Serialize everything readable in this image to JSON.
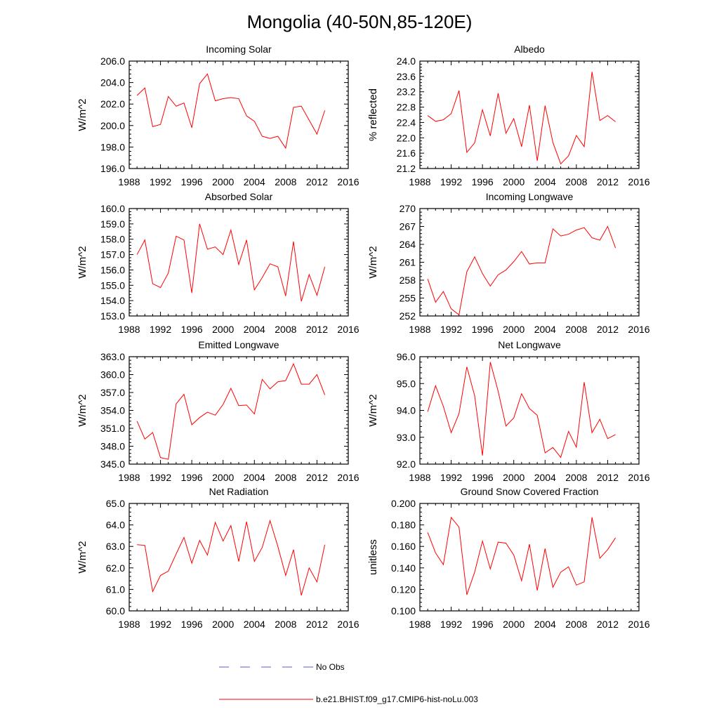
{
  "figure": {
    "title": "Mongolia (40-50N,85-120E)"
  },
  "legend": [
    {
      "label": "No Obs",
      "color": "#5b5bd6",
      "dash": true
    },
    {
      "label": "b.e21.BHIST.f09_g17.CMIP6-hist-noLu.003",
      "color": "#ff0000",
      "dash": false
    }
  ],
  "chart_data": [
    {
      "type": "line",
      "title": "Incoming Solar",
      "ylabel": "W/m^2",
      "xlim": [
        1988,
        2016
      ],
      "xticks": [
        1988,
        1992,
        1996,
        2000,
        2004,
        2008,
        2012,
        2016
      ],
      "ylim": [
        196.0,
        206.0
      ],
      "yticks": [
        "196.0",
        "198.0",
        "200.0",
        "202.0",
        "204.0",
        "206.0"
      ],
      "x": [
        1989,
        1990,
        1991,
        1992,
        1993,
        1994,
        1995,
        1996,
        1997,
        1998,
        1999,
        2000,
        2001,
        2002,
        2003,
        2004,
        2005,
        2006,
        2007,
        2008,
        2009,
        2010,
        2011,
        2012,
        2013
      ],
      "series": [
        {
          "name": "b.e21.BHIST.f09_g17.CMIP6-hist-noLu.003",
          "color": "#ff0000",
          "values": [
            202.8,
            203.5,
            199.9,
            200.1,
            202.7,
            201.8,
            202.1,
            199.8,
            203.9,
            204.8,
            202.3,
            202.5,
            202.6,
            202.5,
            200.9,
            200.4,
            199.0,
            198.8,
            199.0,
            197.9,
            201.7,
            201.8,
            200.5,
            199.2,
            201.4
          ]
        }
      ]
    },
    {
      "type": "line",
      "title": "Albedo",
      "ylabel": "% reflected",
      "xlim": [
        1988,
        2016
      ],
      "xticks": [
        1988,
        1992,
        1996,
        2000,
        2004,
        2008,
        2012,
        2016
      ],
      "ylim": [
        21.2,
        24.0
      ],
      "yticks": [
        "21.2",
        "21.6",
        "22.0",
        "22.4",
        "22.8",
        "23.2",
        "23.6",
        "24.0"
      ],
      "x": [
        1989,
        1990,
        1991,
        1992,
        1993,
        1994,
        1995,
        1996,
        1997,
        1998,
        1999,
        2000,
        2001,
        2002,
        2003,
        2004,
        2005,
        2006,
        2007,
        2008,
        2009,
        2010,
        2011,
        2012,
        2013
      ],
      "series": [
        {
          "name": "b.e21.BHIST.f09_g17.CMIP6-hist-noLu.003",
          "color": "#ff0000",
          "values": [
            22.58,
            22.43,
            22.47,
            22.63,
            23.23,
            21.62,
            21.87,
            22.73,
            22.05,
            23.16,
            22.12,
            22.5,
            21.77,
            22.85,
            21.4,
            22.84,
            21.88,
            21.32,
            21.53,
            22.06,
            21.77,
            23.72,
            22.45,
            22.58,
            22.42
          ]
        }
      ]
    },
    {
      "type": "line",
      "title": "Absorbed Solar",
      "ylabel": "W/m^2",
      "xlim": [
        1988,
        2016
      ],
      "xticks": [
        1988,
        1992,
        1996,
        2000,
        2004,
        2008,
        2012,
        2016
      ],
      "ylim": [
        153.0,
        160.0
      ],
      "yticks": [
        "153.0",
        "154.0",
        "155.0",
        "156.0",
        "157.0",
        "158.0",
        "159.0",
        "160.0"
      ],
      "x": [
        1989,
        1990,
        1991,
        1992,
        1993,
        1994,
        1995,
        1996,
        1997,
        1998,
        1999,
        2000,
        2001,
        2002,
        2003,
        2004,
        2005,
        2006,
        2007,
        2008,
        2009,
        2010,
        2011,
        2012,
        2013
      ],
      "series": [
        {
          "name": "b.e21.BHIST.f09_g17.CMIP6-hist-noLu.003",
          "color": "#ff0000",
          "values": [
            157.0,
            157.95,
            155.1,
            154.85,
            155.8,
            158.2,
            157.95,
            154.5,
            159.0,
            157.35,
            157.5,
            157.0,
            158.6,
            156.35,
            157.95,
            154.7,
            155.5,
            156.4,
            156.2,
            154.3,
            157.85,
            153.95,
            155.7,
            154.35,
            156.2
          ]
        }
      ]
    },
    {
      "type": "line",
      "title": "Incoming Longwave",
      "ylabel": "W/m^2",
      "xlim": [
        1988,
        2016
      ],
      "xticks": [
        1988,
        1992,
        1996,
        2000,
        2004,
        2008,
        2012,
        2016
      ],
      "ylim": [
        252,
        270
      ],
      "yticks": [
        "252",
        "255",
        "258",
        "261",
        "264",
        "267",
        "270"
      ],
      "x": [
        1989,
        1990,
        1991,
        1992,
        1993,
        1994,
        1995,
        1996,
        1997,
        1998,
        1999,
        2000,
        2001,
        2002,
        2003,
        2004,
        2005,
        2006,
        2007,
        2008,
        2009,
        2010,
        2011,
        2012,
        2013
      ],
      "series": [
        {
          "name": "b.e21.BHIST.f09_g17.CMIP6-hist-noLu.003",
          "color": "#ff0000",
          "values": [
            258.2,
            254.3,
            256.1,
            253.2,
            252.2,
            259.4,
            261.9,
            259.1,
            257.0,
            258.9,
            259.7,
            261.1,
            262.8,
            260.7,
            260.9,
            260.9,
            266.6,
            265.4,
            265.7,
            266.4,
            266.8,
            265.1,
            264.7,
            267.0,
            263.4
          ]
        }
      ]
    },
    {
      "type": "line",
      "title": "Emitted Longwave",
      "ylabel": "W/m^2",
      "xlim": [
        1988,
        2016
      ],
      "xticks": [
        1988,
        1992,
        1996,
        2000,
        2004,
        2008,
        2012,
        2016
      ],
      "ylim": [
        345.0,
        363.0
      ],
      "yticks": [
        "345.0",
        "348.0",
        "351.0",
        "354.0",
        "357.0",
        "360.0",
        "363.0"
      ],
      "x": [
        1989,
        1990,
        1991,
        1992,
        1993,
        1994,
        1995,
        1996,
        1997,
        1998,
        1999,
        2000,
        2001,
        2002,
        2003,
        2004,
        2005,
        2006,
        2007,
        2008,
        2009,
        2010,
        2011,
        2012,
        2013
      ],
      "series": [
        {
          "name": "b.e21.BHIST.f09_g17.CMIP6-hist-noLu.003",
          "color": "#ff0000",
          "values": [
            352.2,
            349.2,
            350.3,
            346.1,
            345.8,
            355.1,
            356.7,
            351.6,
            352.8,
            353.7,
            353.2,
            355.0,
            357.7,
            354.8,
            354.9,
            353.4,
            359.2,
            357.6,
            358.8,
            359.0,
            361.8,
            358.4,
            358.4,
            360.0,
            356.6
          ]
        }
      ]
    },
    {
      "type": "line",
      "title": "Net Longwave",
      "ylabel": "W/m^2",
      "xlim": [
        1988,
        2016
      ],
      "xticks": [
        1988,
        1992,
        1996,
        2000,
        2004,
        2008,
        2012,
        2016
      ],
      "ylim": [
        92.0,
        96.0
      ],
      "yticks": [
        "92.0",
        "93.0",
        "94.0",
        "95.0",
        "96.0"
      ],
      "x": [
        1989,
        1990,
        1991,
        1992,
        1993,
        1994,
        1995,
        1996,
        1997,
        1998,
        1999,
        2000,
        2001,
        2002,
        2003,
        2004,
        2005,
        2006,
        2007,
        2008,
        2009,
        2010,
        2011,
        2012,
        2013
      ],
      "series": [
        {
          "name": "b.e21.BHIST.f09_g17.CMIP6-hist-noLu.003",
          "color": "#ff0000",
          "values": [
            93.95,
            94.92,
            94.15,
            93.17,
            93.88,
            95.62,
            94.55,
            92.32,
            95.8,
            94.72,
            93.42,
            93.72,
            94.62,
            94.07,
            93.82,
            92.42,
            92.62,
            92.25,
            93.22,
            92.63,
            95.05,
            93.17,
            93.67,
            92.95,
            93.1
          ]
        }
      ]
    },
    {
      "type": "line",
      "title": "Net Radiation",
      "ylabel": "W/m^2",
      "xlim": [
        1988,
        2016
      ],
      "xticks": [
        1988,
        1992,
        1996,
        2000,
        2004,
        2008,
        2012,
        2016
      ],
      "ylim": [
        60.0,
        65.0
      ],
      "yticks": [
        "60.0",
        "61.0",
        "62.0",
        "63.0",
        "64.0",
        "65.0"
      ],
      "x": [
        1989,
        1990,
        1991,
        1992,
        1993,
        1994,
        1995,
        1996,
        1997,
        1998,
        1999,
        2000,
        2001,
        2002,
        2003,
        2004,
        2005,
        2006,
        2007,
        2008,
        2009,
        2010,
        2011,
        2012,
        2013
      ],
      "series": [
        {
          "name": "b.e21.BHIST.f09_g17.CMIP6-hist-noLu.003",
          "color": "#ff0000",
          "values": [
            63.08,
            63.05,
            60.9,
            61.65,
            61.85,
            62.65,
            63.42,
            62.22,
            63.28,
            62.6,
            64.12,
            63.25,
            63.97,
            62.3,
            64.15,
            62.3,
            62.95,
            64.2,
            63.0,
            61.65,
            62.85,
            60.72,
            62.0,
            61.35,
            63.08
          ]
        }
      ]
    },
    {
      "type": "line",
      "title": "Ground Snow Covered Fraction",
      "ylabel": "unitless",
      "xlim": [
        1988,
        2016
      ],
      "xticks": [
        1988,
        1992,
        1996,
        2000,
        2004,
        2008,
        2012,
        2016
      ],
      "ylim": [
        0.1,
        0.2
      ],
      "yticks": [
        "0.100",
        "0.120",
        "0.140",
        "0.160",
        "0.180",
        "0.200"
      ],
      "x": [
        1989,
        1990,
        1991,
        1992,
        1993,
        1994,
        1995,
        1996,
        1997,
        1998,
        1999,
        2000,
        2001,
        2002,
        2003,
        2004,
        2005,
        2006,
        2007,
        2008,
        2009,
        2010,
        2011,
        2012,
        2013
      ],
      "series": [
        {
          "name": "b.e21.BHIST.f09_g17.CMIP6-hist-noLu.003",
          "color": "#ff0000",
          "values": [
            0.173,
            0.154,
            0.143,
            0.187,
            0.178,
            0.115,
            0.136,
            0.165,
            0.139,
            0.164,
            0.163,
            0.152,
            0.128,
            0.162,
            0.119,
            0.158,
            0.122,
            0.136,
            0.141,
            0.124,
            0.127,
            0.187,
            0.149,
            0.157,
            0.168
          ]
        }
      ]
    }
  ]
}
